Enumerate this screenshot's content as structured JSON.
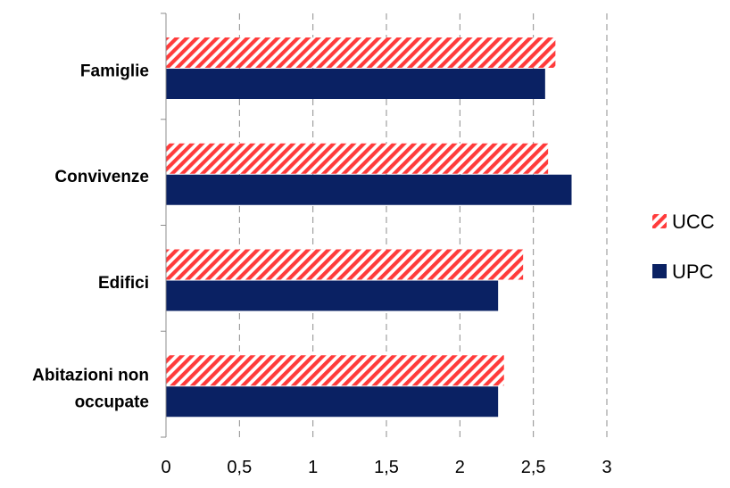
{
  "chart_data": {
    "type": "bar",
    "orientation": "horizontal",
    "categories": [
      "Famiglie",
      "Convivenze",
      "Edifici",
      "Abitazioni non occupate"
    ],
    "category_lines": [
      [
        "Famiglie"
      ],
      [
        "Convivenze"
      ],
      [
        "Edifici"
      ],
      [
        "Abitazioni non",
        "occupate"
      ]
    ],
    "series": [
      {
        "name": "UCC",
        "values": [
          2.65,
          2.6,
          2.43,
          2.3
        ],
        "color": "#ff3b3b",
        "pattern": "diagonal-hatch"
      },
      {
        "name": "UPC",
        "values": [
          2.58,
          2.76,
          2.26,
          2.26
        ],
        "color": "#0a2163",
        "pattern": "solid"
      }
    ],
    "xlim": [
      0,
      3
    ],
    "xticks": [
      "0",
      "0,5",
      "1",
      "1,5",
      "2",
      "2,5",
      "3"
    ],
    "grid": "vertical dashed",
    "legend": "right",
    "title": "",
    "xlabel": "",
    "ylabel": ""
  }
}
